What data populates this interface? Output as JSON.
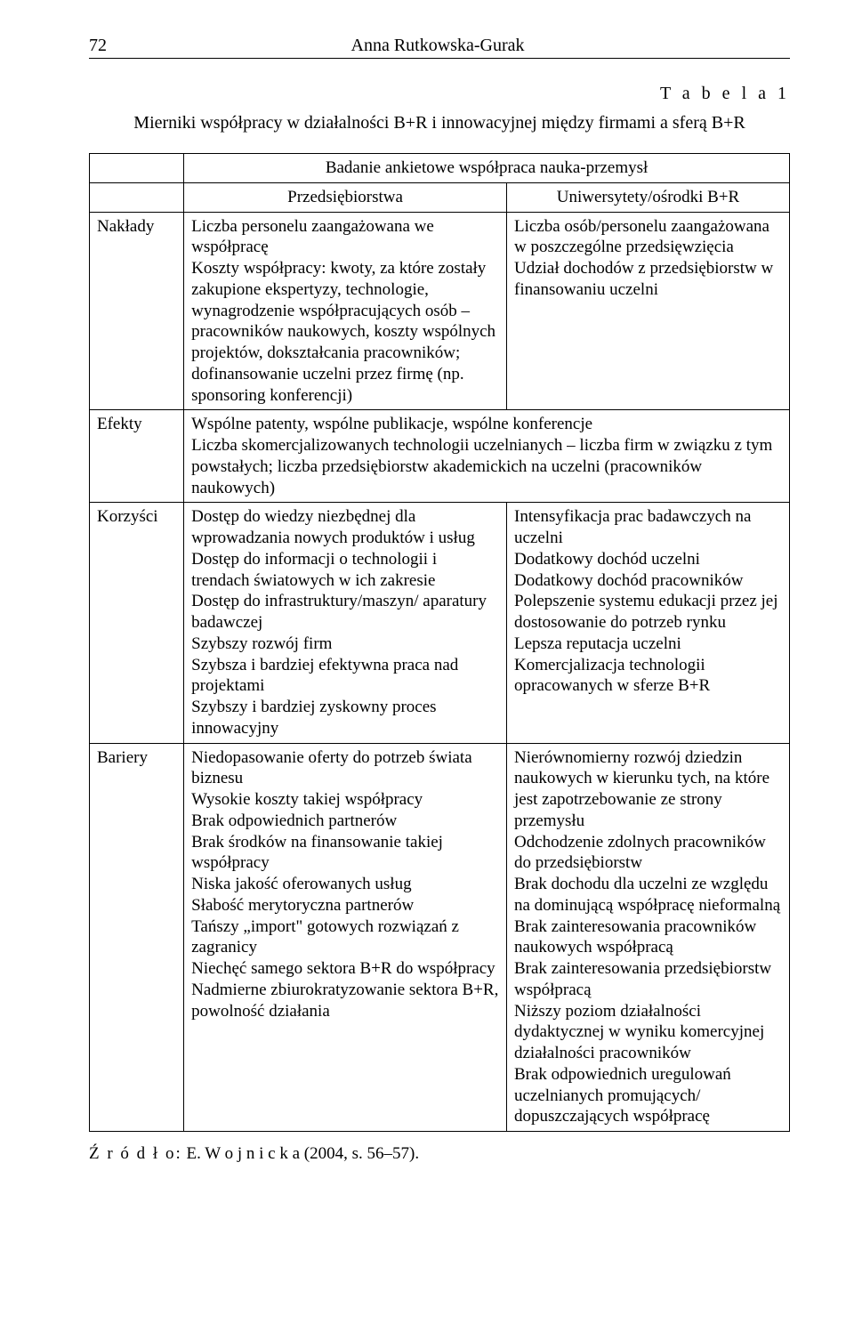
{
  "page_number": "72",
  "author": "Anna Rutkowska-Gurak",
  "table_label": "T a b e l a 1",
  "table_title": "Mierniki współpracy w działalności B+R i innowacyjnej między firmami a sferą B+R",
  "survey_header": "Badanie ankietowe współpraca nauka-przemysł",
  "col_enterprise": "Przedsiębiorstwa",
  "col_universities": "Uniwersytety/ośrodki B+R",
  "rows": {
    "naklady": {
      "label": "Nakłady",
      "left": "Liczba personelu zaangażowana we współpracę\nKoszty współpracy: kwoty, za które zostały zakupione ekspertyzy, technologie, wynagrodzenie współpracujących osób – pracowników naukowych, koszty wspólnych projektów, dokształcania pracowników; dofinansowanie uczelni przez firmę (np. sponsoring konferencji)",
      "right": "Liczba osób/personelu zaangażowana w poszczególne przedsięwzięcia\nUdział dochodów z przedsiębiorstw w finansowaniu uczelni"
    },
    "efekty": {
      "label": "Efekty",
      "merged": "Wspólne patenty, wspólne publikacje, wspólne konferencje\nLiczba skomercjalizowanych technologii uczelnianych – liczba firm w związku z tym powstałych; liczba przedsiębiorstw akademickich na uczelni (pracowników naukowych)"
    },
    "korzysci": {
      "label": "Korzyści",
      "left": "Dostęp do wiedzy niezbędnej dla wprowadzania nowych produktów i usług\nDostęp do informacji o technologii i trendach światowych w ich zakresie\nDostęp do infrastruktury/maszyn/ aparatury badawczej\nSzybszy rozwój firm\nSzybsza i bardziej efektywna praca nad projektami\nSzybszy i bardziej zyskowny proces innowacyjny",
      "right": "Intensyfikacja prac badawczych na uczelni\nDodatkowy dochód uczelni\nDodatkowy dochód pracowników\nPolepszenie systemu edukacji przez jej dostosowanie do potrzeb rynku\nLepsza reputacja uczelni\nKomercjalizacja technologii opracowanych w sferze B+R"
    },
    "bariery": {
      "label": "Bariery",
      "left": "Niedopasowanie oferty do potrzeb świata biznesu\nWysokie koszty takiej współpracy\nBrak odpowiednich partnerów\nBrak środków na finansowanie takiej współpracy\nNiska jakość oferowanych usług\nSłabość merytoryczna partnerów\nTańszy „import\" gotowych rozwiązań z zagranicy\nNiechęć samego sektora B+R do współpracy\nNadmierne zbiurokratyzowanie sektora B+R, powolność działania",
      "right": "Nierównomierny rozwój dziedzin naukowych w kierunku tych, na które jest zapotrzebowanie ze strony przemysłu\nOdchodzenie zdolnych pracowników do przedsiębiorstw\nBrak dochodu dla uczelni ze względu na dominującą współpracę nieformalną\nBrak zainteresowania pracowników naukowych współpracą\nBrak zainteresowania przedsiębiorstw współpracą\nNiższy poziom działalności dydaktycznej w wyniku komercyjnej działalności pracowników\nBrak odpowiednich uregulowań uczelnianych promujących/ dopuszczających współpracę"
    }
  },
  "source_prefix": "Ź r ó d ł o:",
  "source_text": " E. W o j n i c k a  (2004, s. 56–57)."
}
